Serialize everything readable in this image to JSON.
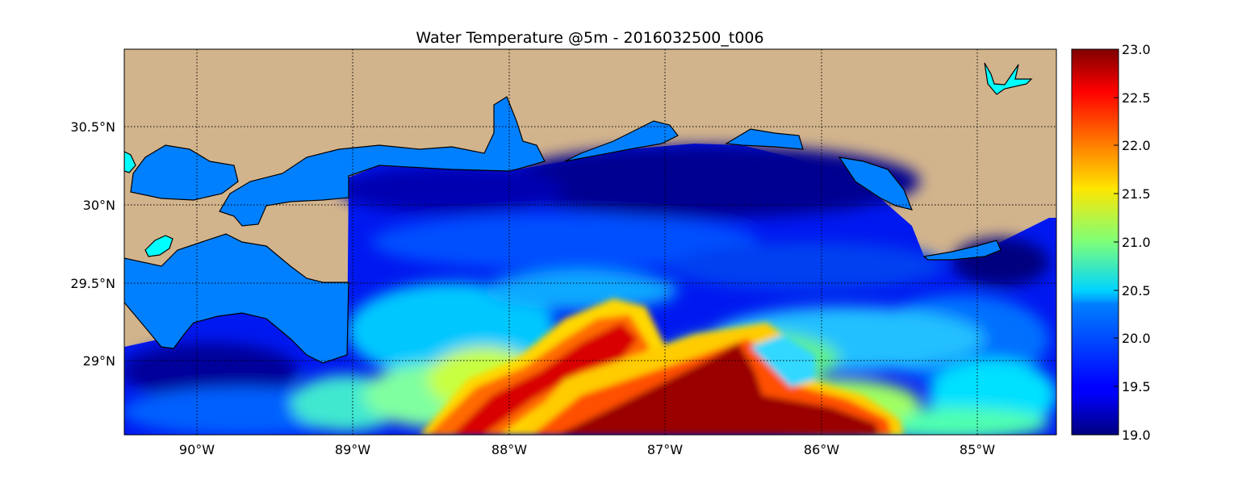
{
  "title": "Water Temperature @5m - 2016032500_t006",
  "map": {
    "lon_range": [
      -90.5,
      -84.5
    ],
    "lat_range": [
      28.55,
      31.0
    ],
    "lon_ticks": [
      {
        "value": -90,
        "label": "90°W"
      },
      {
        "value": -89,
        "label": "89°W"
      },
      {
        "value": -88,
        "label": "88°W"
      },
      {
        "value": -87,
        "label": "87°W"
      },
      {
        "value": -86,
        "label": "86°W"
      },
      {
        "value": -85,
        "label": "85°W"
      }
    ],
    "lat_ticks": [
      {
        "value": 30.5,
        "label": "30.5°N"
      },
      {
        "value": 30.0,
        "label": "30°N"
      },
      {
        "value": 29.5,
        "label": "29.5°N"
      },
      {
        "value": 29.0,
        "label": "29°N"
      }
    ],
    "grid": true,
    "land_color": "#d2b48c",
    "inland_water_color": "#0080ff",
    "lake_color": "#00ffff",
    "coastline_color": "#000000"
  },
  "colorbar": {
    "colormap": "jet",
    "min": 19.0,
    "max": 23.0,
    "ticks": [
      "23.0",
      "22.5",
      "22.0",
      "21.5",
      "21.0",
      "20.5",
      "20.0",
      "19.5",
      "19.0"
    ]
  }
}
